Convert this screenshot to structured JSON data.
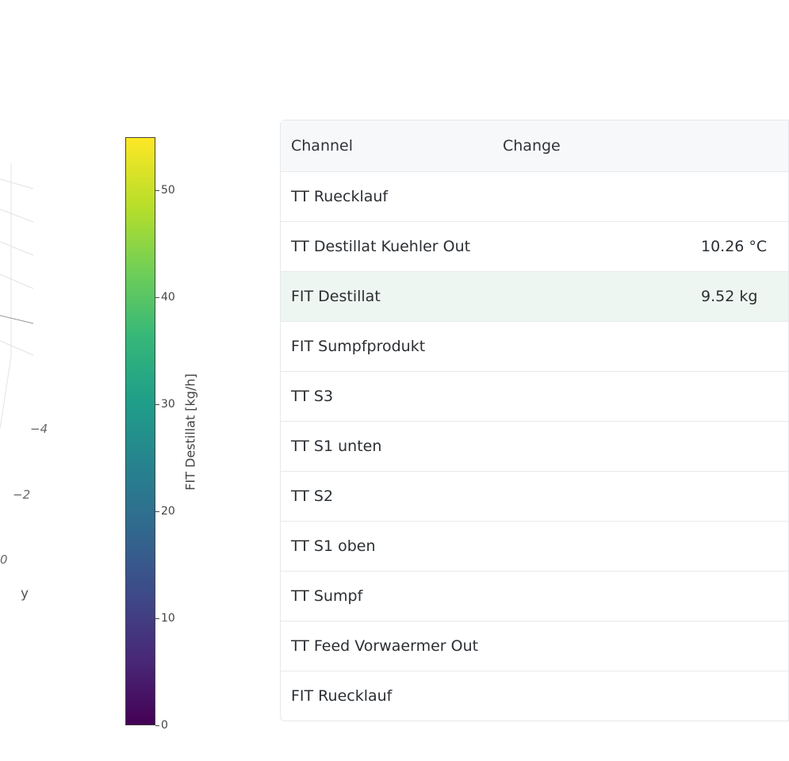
{
  "plot3d": {
    "y_ticks": [
      "−4",
      "−2",
      "0"
    ],
    "y_axis_title": "y"
  },
  "colorbar": {
    "title": "FIT Destillat [kg/h]",
    "ticks": [
      "0",
      "10",
      "20",
      "30",
      "40",
      "50"
    ],
    "tick_values": [
      0,
      10,
      20,
      30,
      40,
      50
    ],
    "range": [
      0,
      55
    ],
    "colorscale": "viridis",
    "colors": [
      "#440154",
      "#3e4989",
      "#26828e",
      "#35b779",
      "#fde725"
    ]
  },
  "table": {
    "columns": {
      "channel": "Channel",
      "change": "Change"
    },
    "rows": [
      {
        "channel": "TT Ruecklauf",
        "value": "",
        "highlight": false
      },
      {
        "channel": "TT Destillat Kuehler Out",
        "value": "10.26 °C",
        "highlight": false
      },
      {
        "channel": "FIT Destillat",
        "value": "9.52 kg",
        "highlight": true
      },
      {
        "channel": "FIT Sumpfprodukt",
        "value": "",
        "highlight": false
      },
      {
        "channel": "TT S3",
        "value": "",
        "highlight": false
      },
      {
        "channel": "TT S1 unten",
        "value": "",
        "highlight": false
      },
      {
        "channel": "TT S2",
        "value": "",
        "highlight": false
      },
      {
        "channel": "TT S1 oben",
        "value": "",
        "highlight": false
      },
      {
        "channel": "TT Sumpf",
        "value": "",
        "highlight": false
      },
      {
        "channel": "TT Feed Vorwaermer Out",
        "value": "",
        "highlight": false
      },
      {
        "channel": "FIT Ruecklauf",
        "value": "",
        "highlight": false
      }
    ],
    "highlight_color": "#eef6f1"
  }
}
